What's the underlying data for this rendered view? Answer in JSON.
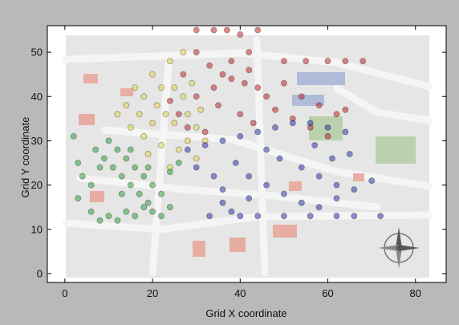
{
  "chart_data": {
    "type": "scatter",
    "xlabel": "Grid X coordinate",
    "ylabel": "Grid Y coordinate",
    "xlim": [
      -4,
      87
    ],
    "ylim": [
      -2,
      56
    ],
    "xticks": [
      0,
      20,
      40,
      60,
      80
    ],
    "yticks": [
      0,
      10,
      20,
      30,
      40,
      50
    ],
    "background": "campus map with buildings, streets and a compass rose",
    "grid": false,
    "series": [
      {
        "color": "#c0262c",
        "points": [
          [
            30,
            55
          ],
          [
            34,
            55
          ],
          [
            37,
            55
          ],
          [
            44,
            55
          ],
          [
            40,
            54
          ],
          [
            42,
            50
          ],
          [
            50,
            48
          ],
          [
            55,
            48
          ],
          [
            60,
            48
          ],
          [
            64,
            48
          ],
          [
            68,
            48
          ],
          [
            30,
            50
          ],
          [
            33,
            47
          ],
          [
            36,
            45
          ],
          [
            38,
            44
          ],
          [
            41,
            43
          ],
          [
            44,
            42
          ],
          [
            30,
            40
          ],
          [
            35,
            38
          ],
          [
            40,
            36
          ],
          [
            43,
            34
          ],
          [
            28,
            33
          ],
          [
            32,
            32
          ],
          [
            26,
            36
          ],
          [
            46,
            40
          ],
          [
            50,
            43
          ],
          [
            54,
            40
          ],
          [
            58,
            38
          ],
          [
            62,
            36
          ],
          [
            64,
            37
          ],
          [
            48,
            37
          ],
          [
            52,
            35
          ],
          [
            56,
            33
          ],
          [
            60,
            31
          ],
          [
            38,
            48
          ],
          [
            42,
            46
          ],
          [
            34,
            42
          ],
          [
            24,
            39
          ],
          [
            27,
            45
          ]
        ]
      },
      {
        "color": "#e0d24a",
        "points": [
          [
            20,
            45
          ],
          [
            24,
            48
          ],
          [
            27,
            50
          ],
          [
            16,
            42
          ],
          [
            18,
            40
          ],
          [
            21,
            38
          ],
          [
            23,
            36
          ],
          [
            25,
            34
          ],
          [
            14,
            38
          ],
          [
            12,
            36
          ],
          [
            15,
            33
          ],
          [
            18,
            31
          ],
          [
            22,
            29
          ],
          [
            26,
            28
          ],
          [
            28,
            30
          ],
          [
            30,
            26
          ],
          [
            24,
            24
          ],
          [
            19,
            27
          ],
          [
            27,
            40
          ],
          [
            29,
            43
          ],
          [
            25,
            42
          ],
          [
            31,
            37
          ],
          [
            22,
            42
          ],
          [
            17,
            36
          ],
          [
            20,
            34
          ],
          [
            28,
            36
          ],
          [
            32,
            30
          ],
          [
            30,
            33
          ]
        ]
      },
      {
        "color": "#2f9e3e",
        "points": [
          [
            2,
            31
          ],
          [
            3,
            25
          ],
          [
            4,
            22
          ],
          [
            3,
            17
          ],
          [
            6,
            14
          ],
          [
            8,
            12
          ],
          [
            10,
            13
          ],
          [
            12,
            12
          ],
          [
            14,
            14
          ],
          [
            16,
            13
          ],
          [
            18,
            15
          ],
          [
            20,
            14
          ],
          [
            22,
            13
          ],
          [
            24,
            15
          ],
          [
            7,
            28
          ],
          [
            9,
            26
          ],
          [
            11,
            24
          ],
          [
            13,
            22
          ],
          [
            15,
            20
          ],
          [
            17,
            18
          ],
          [
            19,
            16
          ],
          [
            10,
            30
          ],
          [
            12,
            28
          ],
          [
            14,
            26
          ],
          [
            16,
            24
          ],
          [
            18,
            22
          ],
          [
            20,
            20
          ],
          [
            22,
            18
          ],
          [
            24,
            23
          ],
          [
            26,
            25
          ],
          [
            13,
            18
          ],
          [
            6,
            20
          ],
          [
            8,
            24
          ],
          [
            15,
            28
          ],
          [
            19,
            24
          ]
        ]
      },
      {
        "color": "#2a36a8",
        "points": [
          [
            28,
            28
          ],
          [
            32,
            29
          ],
          [
            36,
            30
          ],
          [
            40,
            31
          ],
          [
            44,
            32
          ],
          [
            48,
            33
          ],
          [
            52,
            34
          ],
          [
            56,
            34
          ],
          [
            60,
            33
          ],
          [
            64,
            32
          ],
          [
            30,
            24
          ],
          [
            34,
            22
          ],
          [
            36,
            19
          ],
          [
            36,
            16
          ],
          [
            38,
            14
          ],
          [
            40,
            13
          ],
          [
            44,
            13
          ],
          [
            50,
            13
          ],
          [
            56,
            13
          ],
          [
            62,
            13
          ],
          [
            66,
            13
          ],
          [
            72,
            13
          ],
          [
            39,
            25
          ],
          [
            42,
            22
          ],
          [
            46,
            20
          ],
          [
            50,
            18
          ],
          [
            54,
            16
          ],
          [
            58,
            15
          ],
          [
            62,
            17
          ],
          [
            66,
            19
          ],
          [
            70,
            21
          ],
          [
            54,
            24
          ],
          [
            58,
            22
          ],
          [
            62,
            20
          ],
          [
            46,
            28
          ],
          [
            42,
            17
          ],
          [
            33,
            13
          ],
          [
            61,
            26
          ],
          [
            65,
            27
          ],
          [
            57,
            29
          ],
          [
            49,
            26
          ]
        ]
      }
    ]
  }
}
